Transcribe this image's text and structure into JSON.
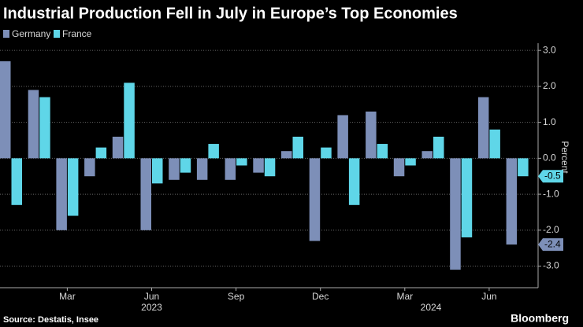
{
  "chart_data": {
    "type": "bar",
    "title": "Industrial Production Fell in July in Europe’s Top Economies",
    "categories": [
      null,
      null,
      "Mar",
      null,
      null,
      "Jun",
      null,
      null,
      "Sep",
      null,
      null,
      "Dec",
      null,
      null,
      "Mar",
      null,
      null,
      "Jun",
      null
    ],
    "years": [
      "2023",
      "2024"
    ],
    "series": [
      {
        "name": "Germany",
        "color": "#7d8fb8",
        "values": [
          2.7,
          1.9,
          -2.0,
          -0.5,
          0.6,
          -2.0,
          -0.6,
          -0.6,
          -0.6,
          -0.4,
          0.2,
          -2.3,
          1.2,
          1.3,
          -0.5,
          0.2,
          -3.1,
          1.7,
          -2.4
        ]
      },
      {
        "name": "France",
        "color": "#5fd6e8",
        "values": [
          -1.3,
          1.7,
          -1.6,
          0.3,
          2.1,
          -0.7,
          -0.4,
          0.4,
          -0.2,
          -0.5,
          0.6,
          0.3,
          -1.3,
          0.4,
          -0.2,
          0.6,
          -2.2,
          0.8,
          -0.5
        ]
      }
    ],
    "y_label": "Percent",
    "ylim": [
      -3.6,
      3.2
    ],
    "yticks": [
      {
        "value": 3,
        "label": "3.0"
      },
      {
        "value": 2,
        "label": "2.0"
      },
      {
        "value": 1,
        "label": "1.0"
      },
      {
        "value": 0,
        "label": "0.0"
      },
      {
        "value": -1,
        "label": "-1.0"
      },
      {
        "value": -2,
        "label": "-2.0"
      },
      {
        "value": -3,
        "label": "-3.0"
      }
    ],
    "grid": true,
    "source": "Source: Destatis, Insee",
    "brand": "Bloomberg"
  }
}
